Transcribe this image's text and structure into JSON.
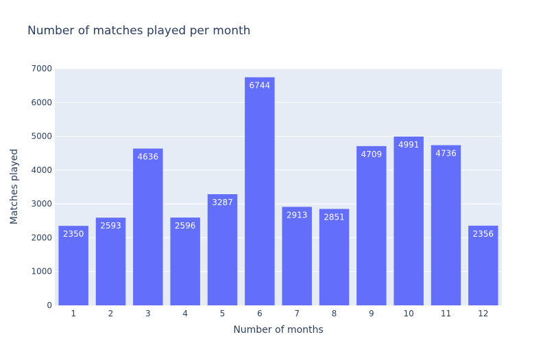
{
  "chart_data": {
    "type": "bar",
    "title": "Number of matches played per month",
    "xlabel": "Number of months",
    "ylabel": "Matches played",
    "categories": [
      "1",
      "2",
      "3",
      "4",
      "5",
      "6",
      "7",
      "8",
      "9",
      "10",
      "11",
      "12"
    ],
    "values": [
      2350,
      2593,
      4636,
      2596,
      3287,
      6744,
      2913,
      2851,
      4709,
      4991,
      4736,
      2356
    ],
    "ylim": [
      0,
      7000
    ],
    "yticks": [
      0,
      1000,
      2000,
      3000,
      4000,
      5000,
      6000,
      7000
    ],
    "grid": true,
    "data_labels": true,
    "colors": {
      "bar": "#636efa",
      "plot_bg": "#e5ecf6",
      "grid": "#ffffff",
      "text": "#2a3f5f",
      "label_text": "#ffffff"
    }
  }
}
